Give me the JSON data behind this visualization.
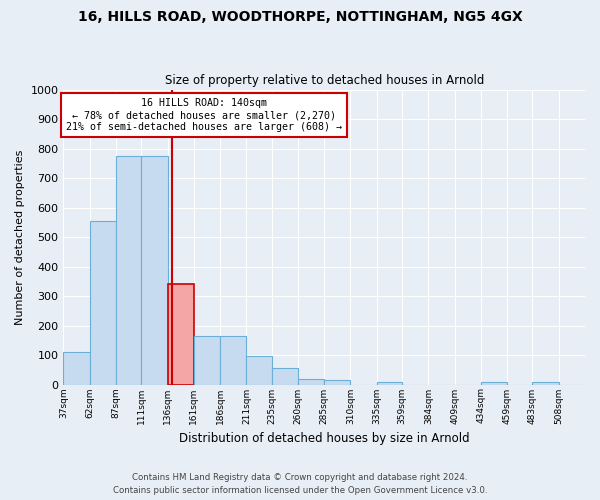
{
  "title1": "16, HILLS ROAD, WOODTHORPE, NOTTINGHAM, NG5 4GX",
  "title2": "Size of property relative to detached houses in Arnold",
  "xlabel": "Distribution of detached houses by size in Arnold",
  "ylabel": "Number of detached properties",
  "footer1": "Contains HM Land Registry data © Crown copyright and database right 2024.",
  "footer2": "Contains public sector information licensed under the Open Government Licence v3.0.",
  "annotation_line1": "16 HILLS ROAD: 140sqm",
  "annotation_line2": "← 78% of detached houses are smaller (2,270)",
  "annotation_line3": "21% of semi-detached houses are larger (608) →",
  "property_size_sqm": 140,
  "bar_edge_color": "#6baed6",
  "bar_fill_color": "#c6dbef",
  "bar_highlight_color": "#cc0000",
  "bar_highlight_fill": "#f4a5a5",
  "annotation_box_color": "#cc0000",
  "bins": [
    37,
    62,
    87,
    111,
    136,
    161,
    186,
    211,
    235,
    260,
    285,
    310,
    335,
    359,
    384,
    409,
    434,
    459,
    483,
    508,
    533
  ],
  "counts": [
    110,
    555,
    775,
    775,
    340,
    165,
    165,
    95,
    55,
    20,
    15,
    0,
    10,
    0,
    0,
    0,
    10,
    0,
    10,
    0
  ],
  "highlight_bin_index": 4,
  "ylim_max": 1000,
  "yticks": [
    0,
    100,
    200,
    300,
    400,
    500,
    600,
    700,
    800,
    900,
    1000
  ],
  "bg_color": "#e8eef5",
  "plot_bg_color": "#e8eef5",
  "grid_color": "#ffffff",
  "figwidth": 6.0,
  "figheight": 5.0,
  "dpi": 100
}
